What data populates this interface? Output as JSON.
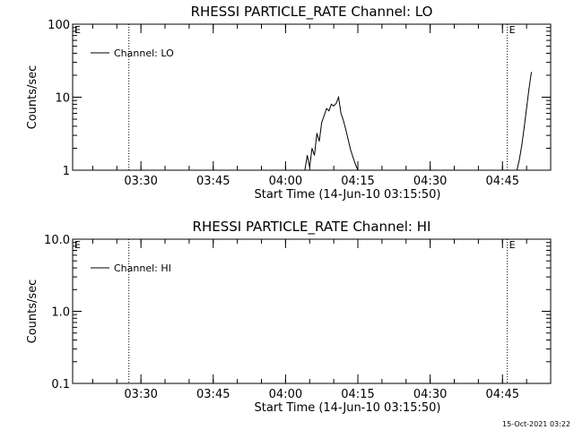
{
  "footer_timestamp": "15-Oct-2021 03:22",
  "chart_data": [
    {
      "type": "line",
      "title": "RHESSI PARTICLE_RATE Channel: LO",
      "xlabel": "Start Time (14-Jun-10 03:15:50)",
      "ylabel": "Counts/sec",
      "yscale": "log",
      "ylim": [
        1,
        100
      ],
      "xlim": [
        "03:15:50",
        "04:55:00"
      ],
      "yticks": [
        1,
        10,
        100
      ],
      "ytick_labels": [
        "1",
        "10",
        "100"
      ],
      "xticks": [
        "03:30",
        "03:45",
        "04:00",
        "04:15",
        "04:30",
        "04:45"
      ],
      "xtick_labels": [
        "03:30",
        "03:45",
        "04:00",
        "04:15",
        "04:30",
        "04:45"
      ],
      "grid": false,
      "legend": "upper-left",
      "series": [
        {
          "name": "Channel: LO",
          "x": [
            "04:04:00",
            "04:04:30",
            "04:05:00",
            "04:05:30",
            "04:06:00",
            "04:06:30",
            "04:07:00",
            "04:07:30",
            "04:08:00",
            "04:08:30",
            "04:09:00",
            "04:09:30",
            "04:10:00",
            "04:10:30",
            "04:11:00",
            "04:11:30",
            "04:12:00",
            "04:12:30",
            "04:13:00",
            "04:13:30",
            "04:14:00",
            "04:14:30",
            "04:15:00",
            "04:48:00",
            "04:48:30",
            "04:49:00",
            "04:49:30",
            "04:50:00",
            "04:50:30",
            "04:51:00"
          ],
          "y": [
            1,
            1.6,
            1.1,
            2.0,
            1.6,
            3.2,
            2.5,
            4.5,
            5.6,
            7.0,
            6.5,
            8.0,
            7.6,
            8.2,
            10.0,
            6.0,
            4.8,
            3.6,
            2.6,
            1.9,
            1.5,
            1.2,
            1,
            1,
            1.4,
            2.2,
            3.8,
            7.0,
            13.0,
            22.0
          ]
        }
      ],
      "annotations": [
        {
          "text": "E",
          "x": "03:15:50"
        },
        {
          "text": "E",
          "x": "04:46:00"
        }
      ],
      "vertical_markers": [
        "03:27:30",
        "04:46:00",
        "04:55:30"
      ]
    },
    {
      "type": "line",
      "title": "RHESSI PARTICLE_RATE Channel: HI",
      "xlabel": "Start Time (14-Jun-10 03:15:50)",
      "ylabel": "Counts/sec",
      "yscale": "log",
      "ylim": [
        0.1,
        10
      ],
      "xlim": [
        "03:15:50",
        "04:55:00"
      ],
      "yticks": [
        0.1,
        1,
        10
      ],
      "ytick_labels": [
        "0.1",
        "1.0",
        "10.0"
      ],
      "xticks": [
        "03:30",
        "03:45",
        "04:00",
        "04:15",
        "04:30",
        "04:45"
      ],
      "xtick_labels": [
        "03:30",
        "03:45",
        "04:00",
        "04:15",
        "04:30",
        "04:45"
      ],
      "grid": false,
      "legend": "upper-left",
      "series": [
        {
          "name": "Channel: HI",
          "x": [],
          "y": []
        }
      ],
      "annotations": [
        {
          "text": "E",
          "x": "03:15:50"
        },
        {
          "text": "E",
          "x": "04:46:00"
        }
      ],
      "vertical_markers": [
        "03:27:30",
        "04:46:00",
        "04:55:30"
      ]
    }
  ]
}
